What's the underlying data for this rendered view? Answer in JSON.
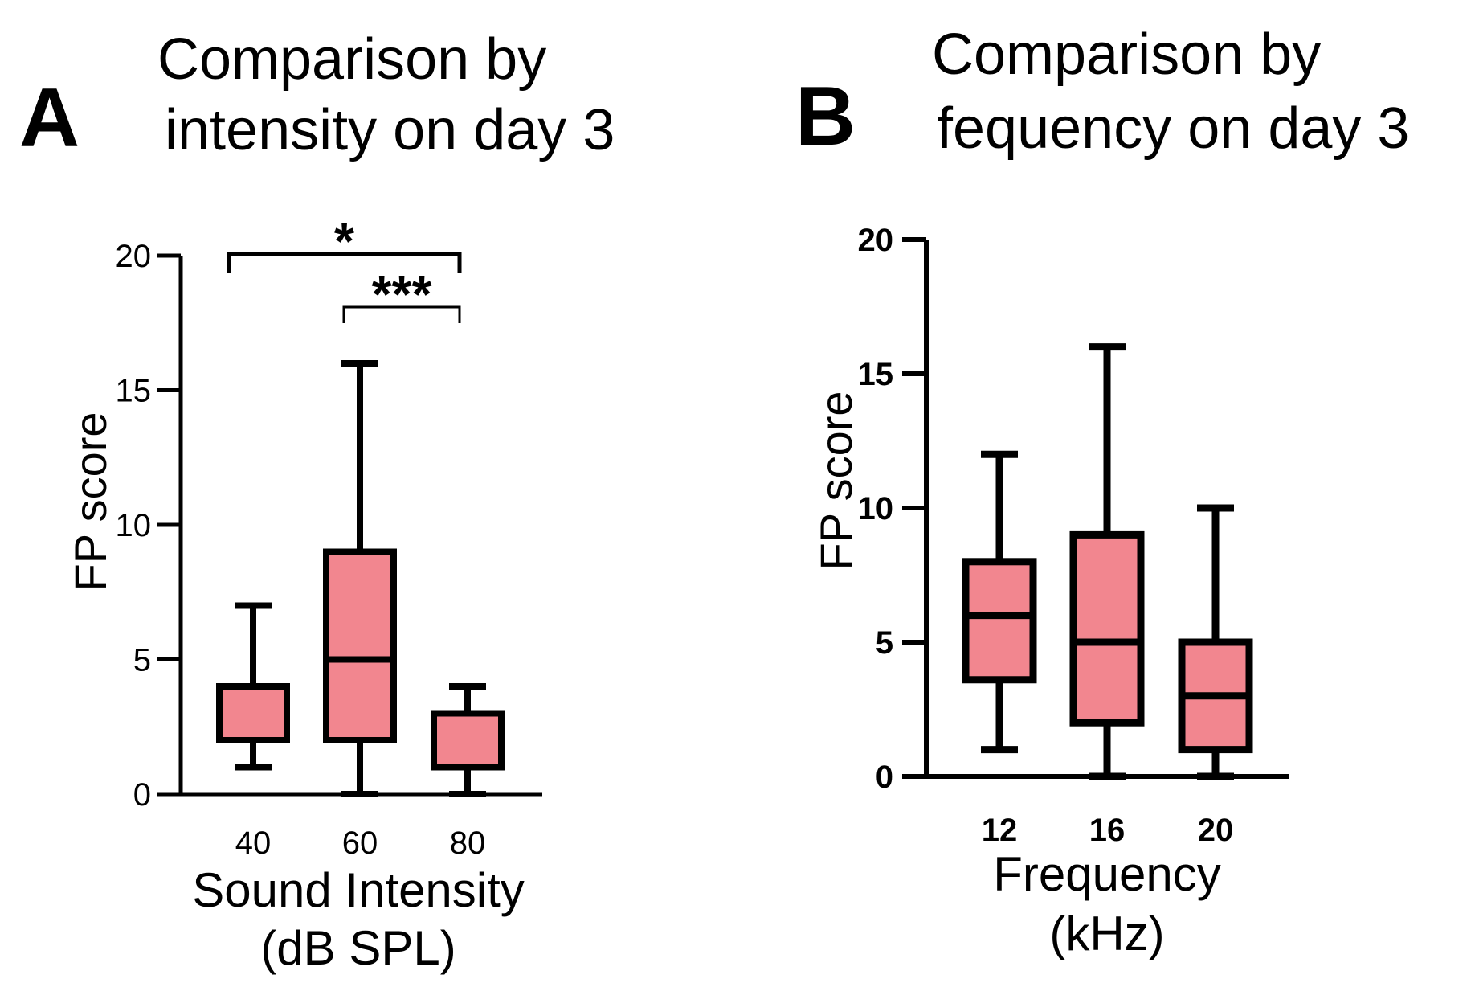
{
  "colors": {
    "box_fill": "#f2868f",
    "stroke": "#000000",
    "background": "#ffffff"
  },
  "chart_data": [
    {
      "panel": "A",
      "type": "box",
      "title": "Comparison by intensity on day 3",
      "title_lines": [
        "Comparison by",
        "intensity on day 3"
      ],
      "xlabel": "Sound Intensity (dB SPL)",
      "xlabel_lines": [
        "Sound Intensity",
        "(dB SPL)"
      ],
      "ylabel": "FP score",
      "ylim": [
        0,
        20
      ],
      "yticks": [
        0,
        5,
        10,
        15,
        20
      ],
      "ytick_labels": [
        "0",
        "5",
        "10",
        "15",
        "20"
      ],
      "categories": [
        "40",
        "60",
        "80"
      ],
      "boxes": [
        {
          "category": "40",
          "min": 1,
          "q1": 2,
          "median": 4,
          "q3": 4,
          "max": 7
        },
        {
          "category": "60",
          "min": 0,
          "q1": 2,
          "median": 5,
          "q3": 9,
          "max": 16
        },
        {
          "category": "80",
          "min": 0,
          "q1": 1,
          "median": 1,
          "q3": 3,
          "max": 4
        }
      ],
      "significance": [
        {
          "from": "40",
          "to": "80",
          "label": "*"
        },
        {
          "from": "60",
          "to": "80",
          "label": "***"
        }
      ]
    },
    {
      "panel": "B",
      "type": "box",
      "title": "Comparison by fequency on day 3",
      "title_lines": [
        "Comparison by",
        "fequency on day 3"
      ],
      "xlabel": "Frequency (kHz)",
      "xlabel_lines": [
        "Frequency",
        "(kHz)"
      ],
      "ylabel": "FP score",
      "ylim": [
        0,
        20
      ],
      "yticks": [
        0,
        5,
        10,
        15,
        20
      ],
      "ytick_labels": [
        "0",
        "5",
        "10",
        "15",
        "20"
      ],
      "categories": [
        "12",
        "16",
        "20"
      ],
      "boxes": [
        {
          "category": "12",
          "min": 1,
          "q1": 3.6,
          "median": 6,
          "q3": 8,
          "max": 12
        },
        {
          "category": "16",
          "min": 0,
          "q1": 2,
          "median": 5,
          "q3": 9,
          "max": 16
        },
        {
          "category": "20",
          "min": 0,
          "q1": 1,
          "median": 3,
          "q3": 5,
          "max": 10
        }
      ],
      "significance": []
    }
  ]
}
